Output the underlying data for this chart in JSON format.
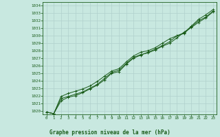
{
  "title": "Graphe pression niveau de la mer (hPa)",
  "bg_color": "#c8e8e0",
  "grid_color": "#b0d0cc",
  "line_color": "#1a5c1a",
  "marker_color": "#1a5c1a",
  "xlim": [
    -0.5,
    23.5
  ],
  "ylim": [
    1019.5,
    1034.5
  ],
  "yticks": [
    1020,
    1021,
    1022,
    1023,
    1024,
    1025,
    1026,
    1027,
    1028,
    1029,
    1030,
    1031,
    1032,
    1033,
    1034
  ],
  "xticks": [
    0,
    1,
    2,
    3,
    4,
    5,
    6,
    7,
    8,
    9,
    10,
    11,
    12,
    13,
    14,
    15,
    16,
    17,
    18,
    19,
    20,
    21,
    22,
    23
  ],
  "series": [
    [
      1019.8,
      1019.6,
      1021.3,
      1021.8,
      1022.0,
      1022.4,
      1022.9,
      1023.4,
      1024.1,
      1025.0,
      1025.2,
      1026.2,
      1027.0,
      1027.4,
      1027.8,
      1028.2,
      1028.7,
      1029.2,
      1030.0,
      1030.3,
      1031.2,
      1032.0,
      1032.5,
      1033.3
    ],
    [
      1019.8,
      1019.6,
      1021.6,
      1021.9,
      1022.2,
      1022.5,
      1023.0,
      1023.5,
      1024.3,
      1025.1,
      1025.4,
      1026.3,
      1027.1,
      1027.5,
      1027.7,
      1028.1,
      1028.6,
      1029.0,
      1029.7,
      1030.5,
      1031.1,
      1031.8,
      1032.4,
      1033.2
    ],
    [
      1019.8,
      1019.6,
      1021.9,
      1022.3,
      1022.6,
      1022.9,
      1023.3,
      1023.9,
      1024.6,
      1025.3,
      1025.6,
      1026.5,
      1027.3,
      1027.8,
      1028.0,
      1028.4,
      1029.0,
      1029.6,
      1030.0,
      1030.4,
      1031.3,
      1032.2,
      1032.8,
      1033.5
    ]
  ]
}
